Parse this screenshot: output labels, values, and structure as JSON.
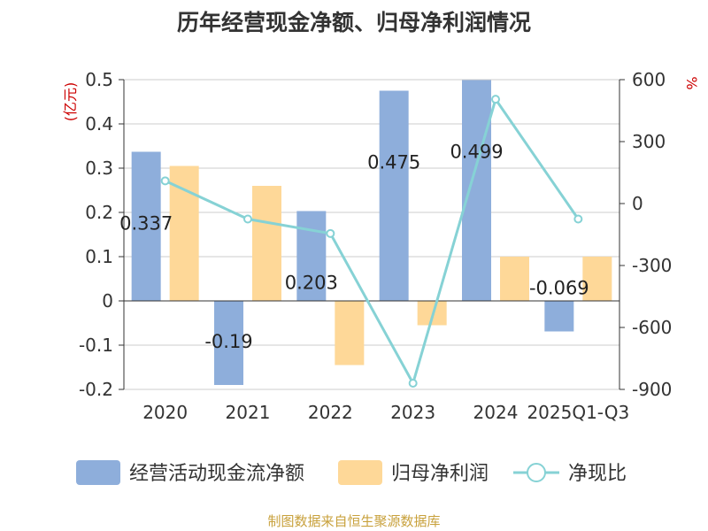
{
  "source": "制图数据来自恒生聚源数据库",
  "chart_data": {
    "type": "bar",
    "title": "历年经营现金净额、归母净利润情况",
    "categories": [
      "2020",
      "2021",
      "2022",
      "2023",
      "2024",
      "2025Q1-Q3"
    ],
    "y_left": {
      "label": "(亿元)",
      "ylim": [
        -0.2,
        0.5
      ],
      "ticks": [
        "0.5",
        "0.4",
        "0.3",
        "0.2",
        "0.1",
        "0",
        "-0.1",
        "-0.2"
      ]
    },
    "y_right": {
      "label": "%",
      "ylim": [
        -900,
        600
      ],
      "ticks": [
        "600",
        "300",
        "0",
        "-300",
        "-600",
        "-900"
      ]
    },
    "series": [
      {
        "name": "经营活动现金流净额",
        "kind": "bar",
        "axis": "left",
        "color": "#8eaedb",
        "values": [
          0.337,
          -0.19,
          0.203,
          0.475,
          0.499,
          -0.069
        ],
        "labels": [
          "0.337",
          "-0.19",
          "0.203",
          "0.475",
          "0.499",
          "-0.069"
        ]
      },
      {
        "name": "归母净利润",
        "kind": "bar",
        "axis": "left",
        "color": "#fed898",
        "values": [
          0.305,
          0.26,
          -0.145,
          -0.055,
          0.1,
          0.1
        ]
      },
      {
        "name": "净现比",
        "kind": "line",
        "axis": "right",
        "color": "#86d2d5",
        "values": [
          110,
          -75,
          -145,
          -870,
          505,
          -75
        ]
      }
    ],
    "grid": true,
    "legend": "bottom"
  }
}
